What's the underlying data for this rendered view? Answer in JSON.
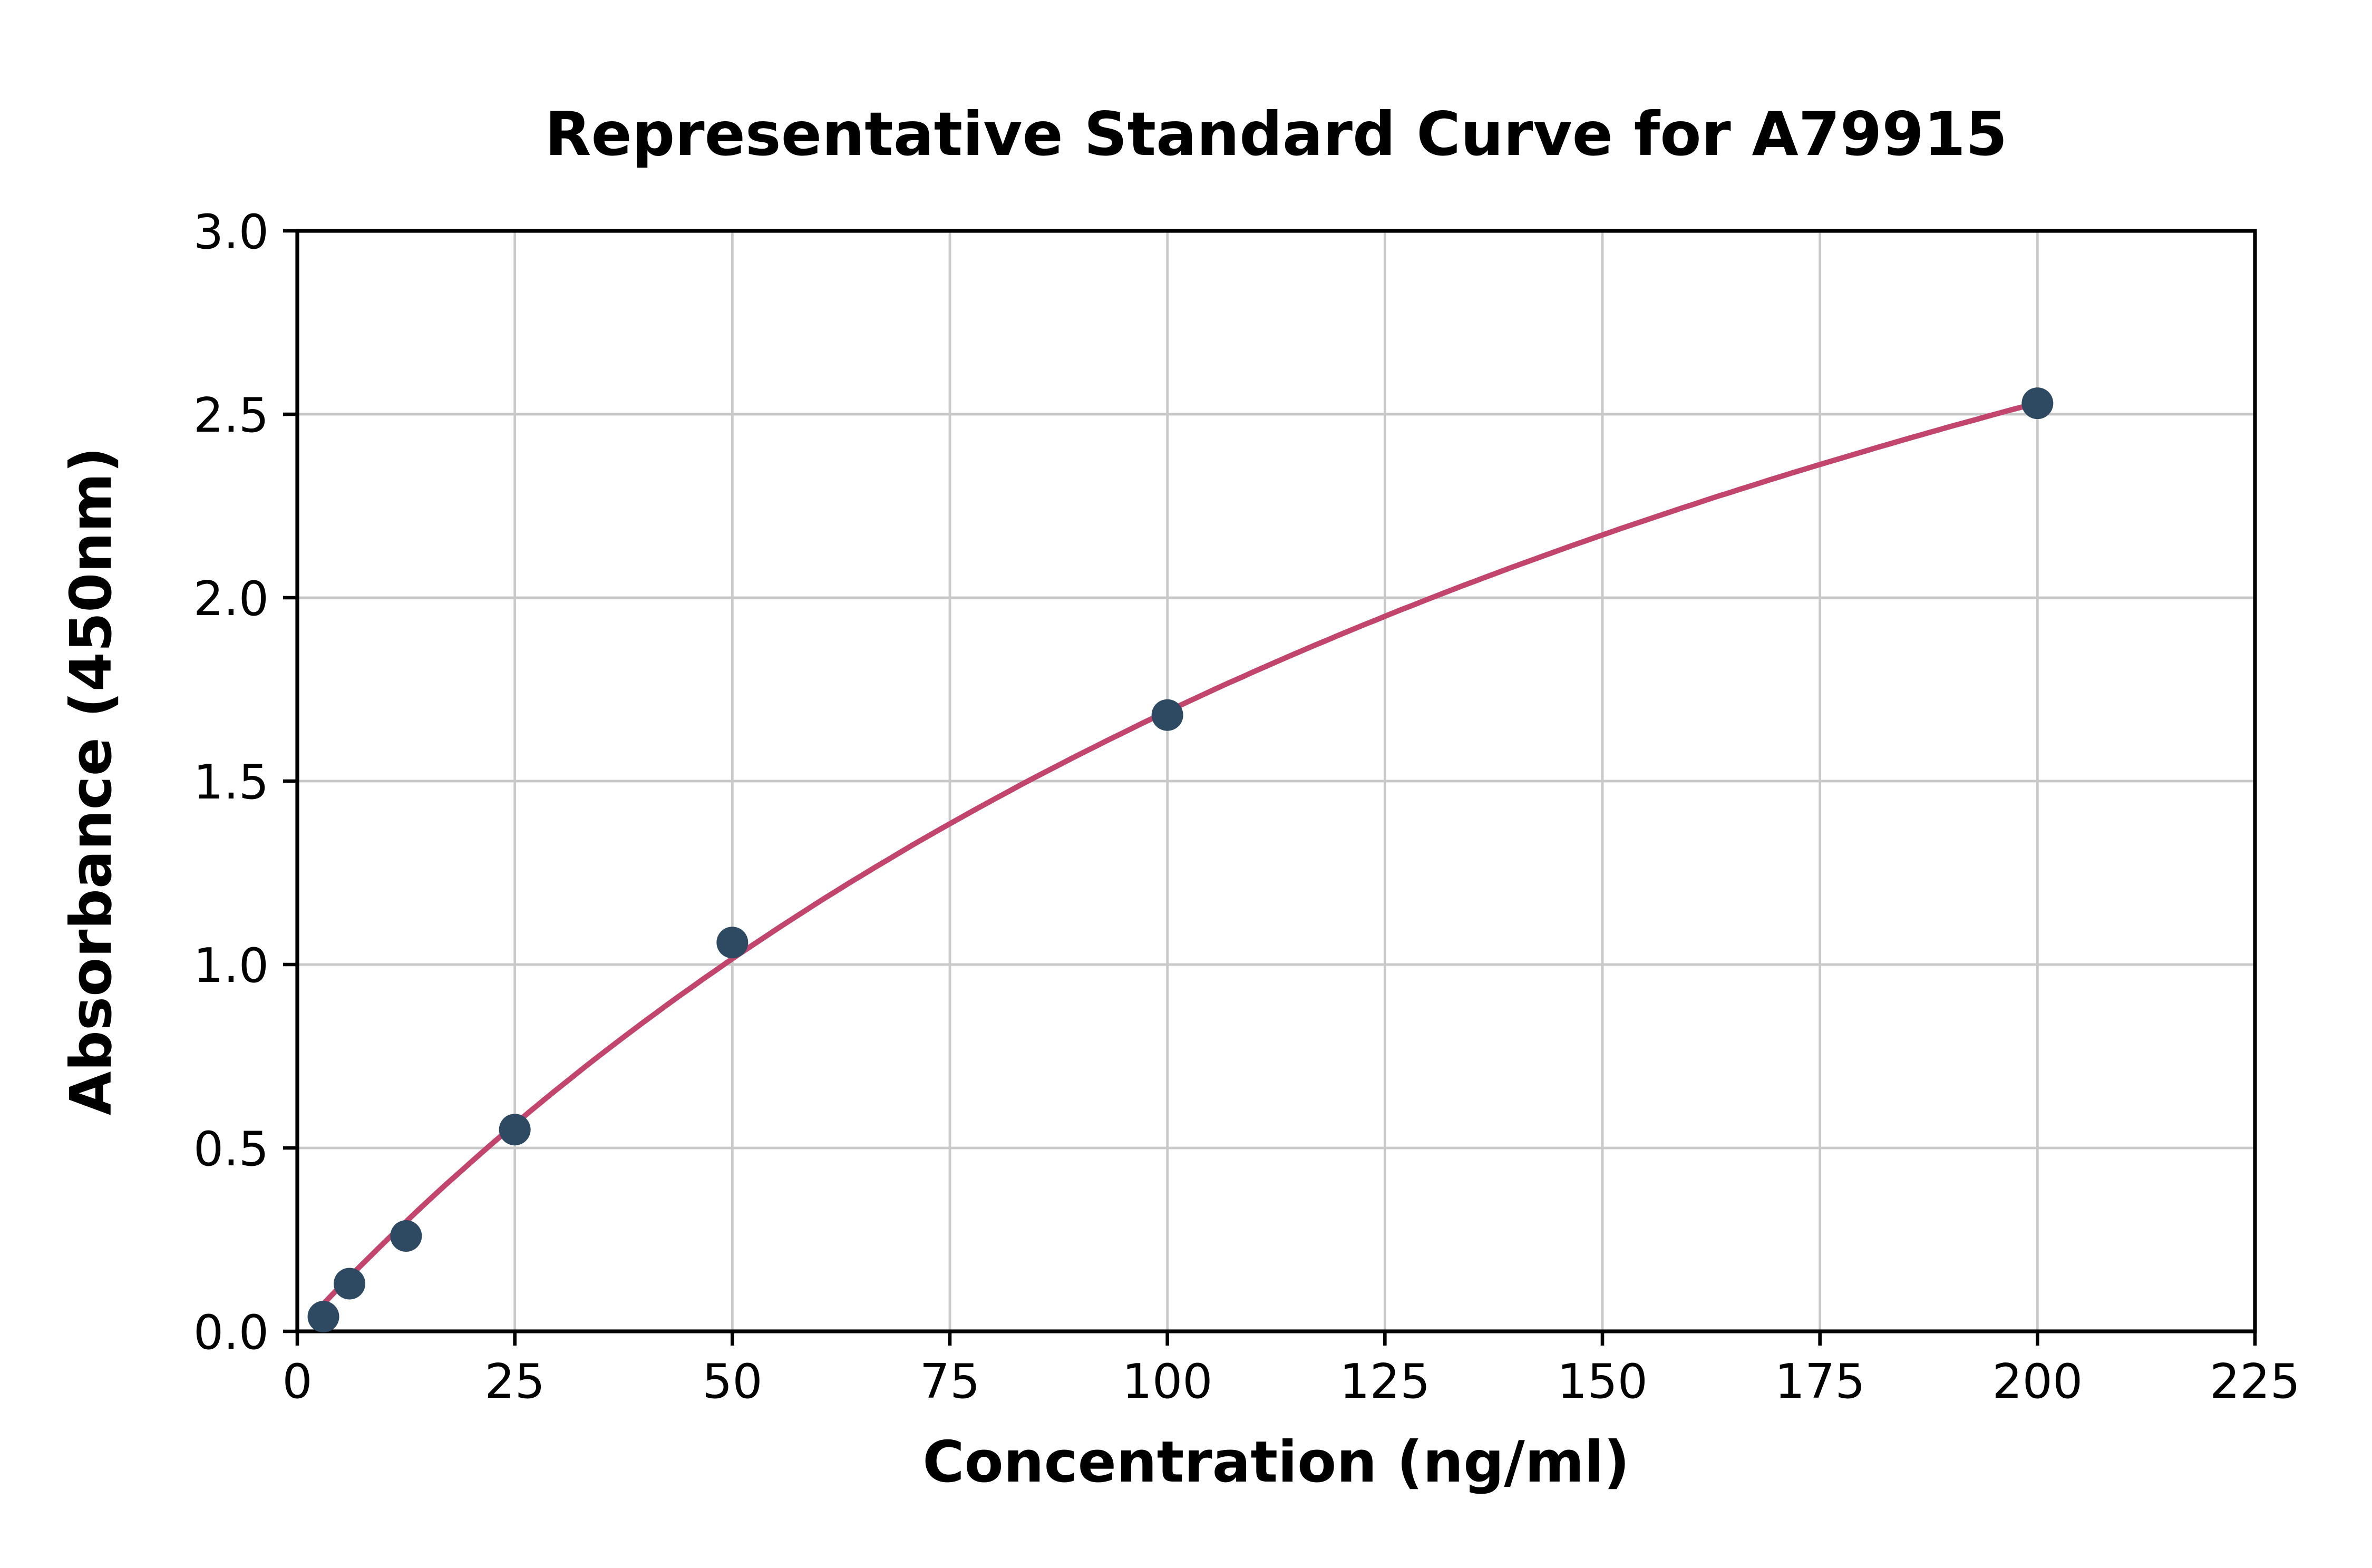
{
  "chart_data": {
    "type": "scatter",
    "title": "Representative Standard Curve for A79915",
    "xlabel": "Concentration (ng/ml)",
    "ylabel": "Absorbance (450nm)",
    "xlim": [
      0,
      225
    ],
    "ylim": [
      0,
      3.0
    ],
    "xticks": [
      0,
      25,
      50,
      75,
      100,
      125,
      150,
      175,
      200,
      225
    ],
    "xtick_labels": [
      "0",
      "25",
      "50",
      "75",
      "100",
      "125",
      "150",
      "175",
      "200",
      "225"
    ],
    "yticks": [
      0.0,
      0.5,
      1.0,
      1.5,
      2.0,
      2.5,
      3.0
    ],
    "ytick_labels": [
      "0.0",
      "0.5",
      "1.0",
      "1.5",
      "2.0",
      "2.5",
      "3.0"
    ],
    "grid": true,
    "legend": "none",
    "points": [
      {
        "x": 3,
        "y": 0.04
      },
      {
        "x": 6,
        "y": 0.13
      },
      {
        "x": 12.5,
        "y": 0.26
      },
      {
        "x": 25,
        "y": 0.55
      },
      {
        "x": 50,
        "y": 1.06
      },
      {
        "x": 100,
        "y": 1.68
      },
      {
        "x": 200,
        "y": 2.53
      }
    ],
    "fit_curve": {
      "type": "saturating-fit",
      "color": "#c2456d"
    },
    "point_color": "#2e4a62",
    "grid_color": "#c9c9c9",
    "axis_color": "#000000",
    "background_color": "#ffffff"
  }
}
